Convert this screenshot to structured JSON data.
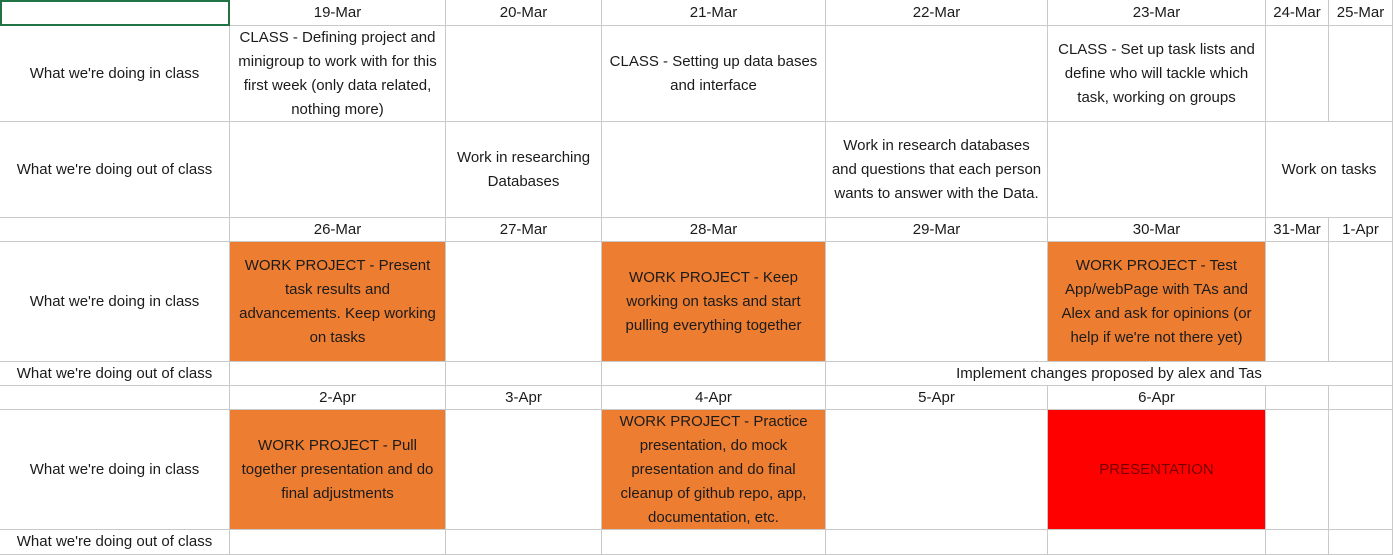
{
  "colors": {
    "orange": "#ed7d31",
    "red": "#ff0000",
    "gridline": "#c9c9c9",
    "selection": "#217346"
  },
  "row_labels": {
    "in_class": "What we're doing in class",
    "out_class": "What we're doing out of class"
  },
  "week1": {
    "dates": [
      "19-Mar",
      "20-Mar",
      "21-Mar",
      "22-Mar",
      "23-Mar",
      "24-Mar",
      "25-Mar"
    ],
    "in_class": {
      "mar19": "CLASS - Defining project and minigroup to work with for this first week (only data related, nothing more)",
      "mar21": "CLASS - Setting up data bases and interface",
      "mar23": "CLASS - Set up task lists and define who will tackle which task, working on groups"
    },
    "out_class": {
      "mar20": "Work in researching Databases",
      "mar22": "Work in research databases and questions that each person wants to answer with the Data.",
      "weekend": "Work on tasks"
    }
  },
  "week2": {
    "dates": [
      "26-Mar",
      "27-Mar",
      "28-Mar",
      "29-Mar",
      "30-Mar",
      "31-Mar",
      "1-Apr"
    ],
    "in_class": {
      "mar26": "WORK PROJECT - Present task results and advancements. Keep working on tasks",
      "mar28": "WORK PROJECT - Keep working on tasks and start pulling everything together",
      "mar30": "WORK PROJECT - Test App/webPage with TAs and Alex and ask for opinions (or help if we're not there yet)"
    },
    "out_class": {
      "changes": "Implement changes proposed by alex and Tas"
    }
  },
  "week3": {
    "dates": [
      "2-Apr",
      "3-Apr",
      "4-Apr",
      "5-Apr",
      "6-Apr"
    ],
    "in_class": {
      "apr2": "WORK PROJECT - Pull together presentation and do final adjustments",
      "apr4": "WORK PROJECT - Practice presentation, do mock presentation and do final cleanup of github repo, app, documentation, etc.",
      "apr6": "PRESENTATION"
    }
  }
}
